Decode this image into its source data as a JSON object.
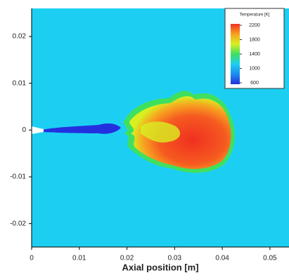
{
  "chart_data": {
    "type": "contour",
    "xlabel": "Axial position [m]",
    "xlim": [
      0,
      0.054
    ],
    "xticks": [
      0,
      0.01,
      0.02,
      0.03,
      0.04,
      0.05
    ],
    "ylim": [
      -0.025,
      0.026
    ],
    "yticks": [
      -0.02,
      -0.01,
      0,
      0.01,
      0.02
    ],
    "background_color": "#1ccff2",
    "colorbar": {
      "title": "Temperature [K]",
      "clim": [
        600,
        2200
      ],
      "ticks": [
        600,
        1000,
        1400,
        1800,
        2200
      ],
      "colors": [
        "#2430e0",
        "#1c8cf0",
        "#1ccff2",
        "#3fe060",
        "#d8f020",
        "#f8a020",
        "#f03020"
      ]
    }
  }
}
